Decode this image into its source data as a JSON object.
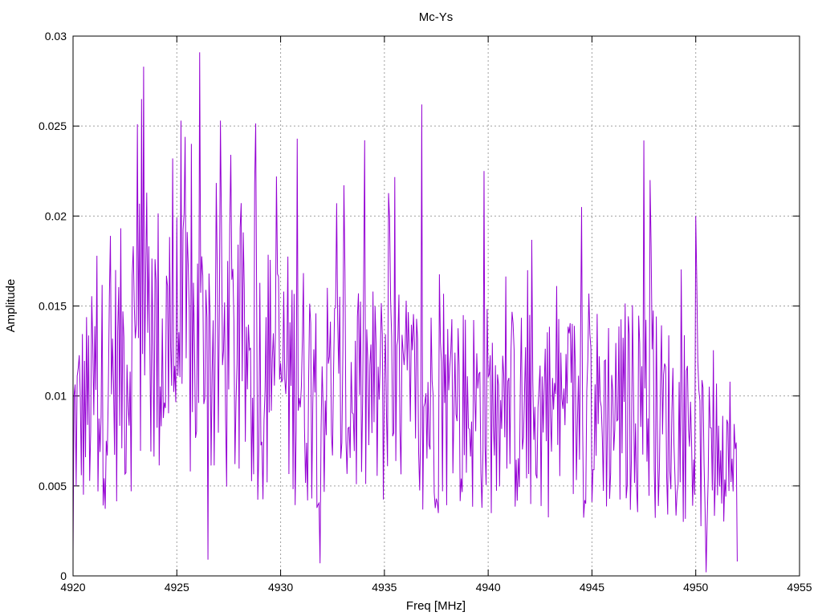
{
  "chart_data": {
    "type": "line",
    "title": "Mc-Ys",
    "xlabel": "Freq [MHz]",
    "ylabel": "Amplitude",
    "xlim": [
      4920,
      4955
    ],
    "ylim": [
      0,
      0.03
    ],
    "xticks": [
      4920,
      4925,
      4930,
      4935,
      4940,
      4945,
      4950,
      4955
    ],
    "xtick_labels": [
      "4920",
      "4925",
      "4930",
      "4935",
      "4940",
      "4945",
      "4950",
      "4955"
    ],
    "yticks": [
      0,
      0.005,
      0.01,
      0.015,
      0.02,
      0.025,
      0.03
    ],
    "ytick_labels": [
      "0",
      "0.005",
      "0.01",
      "0.015",
      "0.02",
      "0.025",
      "0.03"
    ],
    "grid": true,
    "colors": {
      "series": "#9400d3",
      "grid": "#a0a0a0",
      "axis": "#000000"
    },
    "series": [
      {
        "x_start": 4920.0,
        "x_step": 0.05,
        "points": 641,
        "envelope": {
          "x": [
            4920,
            4922,
            4923,
            4924,
            4926,
            4928,
            4930,
            4932,
            4935,
            4938,
            4940,
            4943,
            4945,
            4947,
            4949,
            4950,
            4951,
            4952
          ],
          "y": [
            0.0085,
            0.011,
            0.0135,
            0.013,
            0.0125,
            0.0118,
            0.0112,
            0.0105,
            0.0098,
            0.0095,
            0.0093,
            0.009,
            0.0092,
            0.0095,
            0.0085,
            0.0075,
            0.0058,
            0.005
          ]
        },
        "peaks": [
          {
            "x": 4920.0,
            "y": 0.0013
          },
          {
            "x": 4923.1,
            "y": 0.0251
          },
          {
            "x": 4923.4,
            "y": 0.0283
          },
          {
            "x": 4923.3,
            "y": 0.0265
          },
          {
            "x": 4924.8,
            "y": 0.0232
          },
          {
            "x": 4925.4,
            "y": 0.0244
          },
          {
            "x": 4926.1,
            "y": 0.0291
          },
          {
            "x": 4927.1,
            "y": 0.0253
          },
          {
            "x": 4927.6,
            "y": 0.0234
          },
          {
            "x": 4929.8,
            "y": 0.0222
          },
          {
            "x": 4930.8,
            "y": 0.0243
          },
          {
            "x": 4936.8,
            "y": 0.0262
          },
          {
            "x": 4939.8,
            "y": 0.0225
          },
          {
            "x": 4944.5,
            "y": 0.0205
          },
          {
            "x": 4947.5,
            "y": 0.0242
          },
          {
            "x": 4947.8,
            "y": 0.022
          },
          {
            "x": 4950.0,
            "y": 0.02
          },
          {
            "x": 4926.5,
            "y": 0.0009
          },
          {
            "x": 4931.9,
            "y": 0.0007
          },
          {
            "x": 4950.5,
            "y": 0.0002
          },
          {
            "x": 4952.0,
            "y": 0.0008
          }
        ]
      }
    ]
  }
}
